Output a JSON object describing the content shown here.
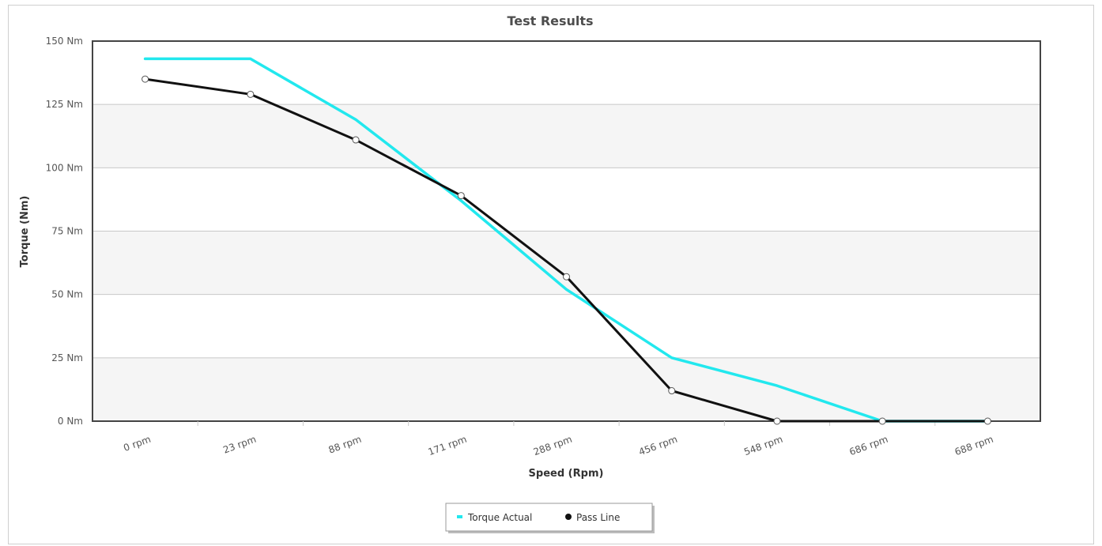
{
  "chart_data": {
    "type": "line",
    "title": "Test Results",
    "xlabel": "Speed (Rpm)",
    "ylabel": "Torque (Nm)",
    "categories": [
      "0 rpm",
      "23 rpm",
      "88 rpm",
      "171 rpm",
      "288 rpm",
      "456 rpm",
      "548 rpm",
      "686 rpm",
      "688 rpm"
    ],
    "y_ticks": [
      "0 Nm",
      "25 Nm",
      "50 Nm",
      "75 Nm",
      "100 Nm",
      "125 Nm",
      "150 Nm"
    ],
    "ylim": [
      0,
      150
    ],
    "grid": true,
    "legend_position": "bottom-center",
    "series": [
      {
        "name": "Torque Actual",
        "color": "#22e8ee",
        "markers": false,
        "values": [
          143,
          143,
          119,
          87,
          52,
          25,
          14,
          0,
          0
        ]
      },
      {
        "name": "Pass Line",
        "color": "#111111",
        "markers": true,
        "values": [
          135,
          129,
          111,
          89,
          57,
          12,
          0,
          0,
          0
        ]
      }
    ]
  }
}
